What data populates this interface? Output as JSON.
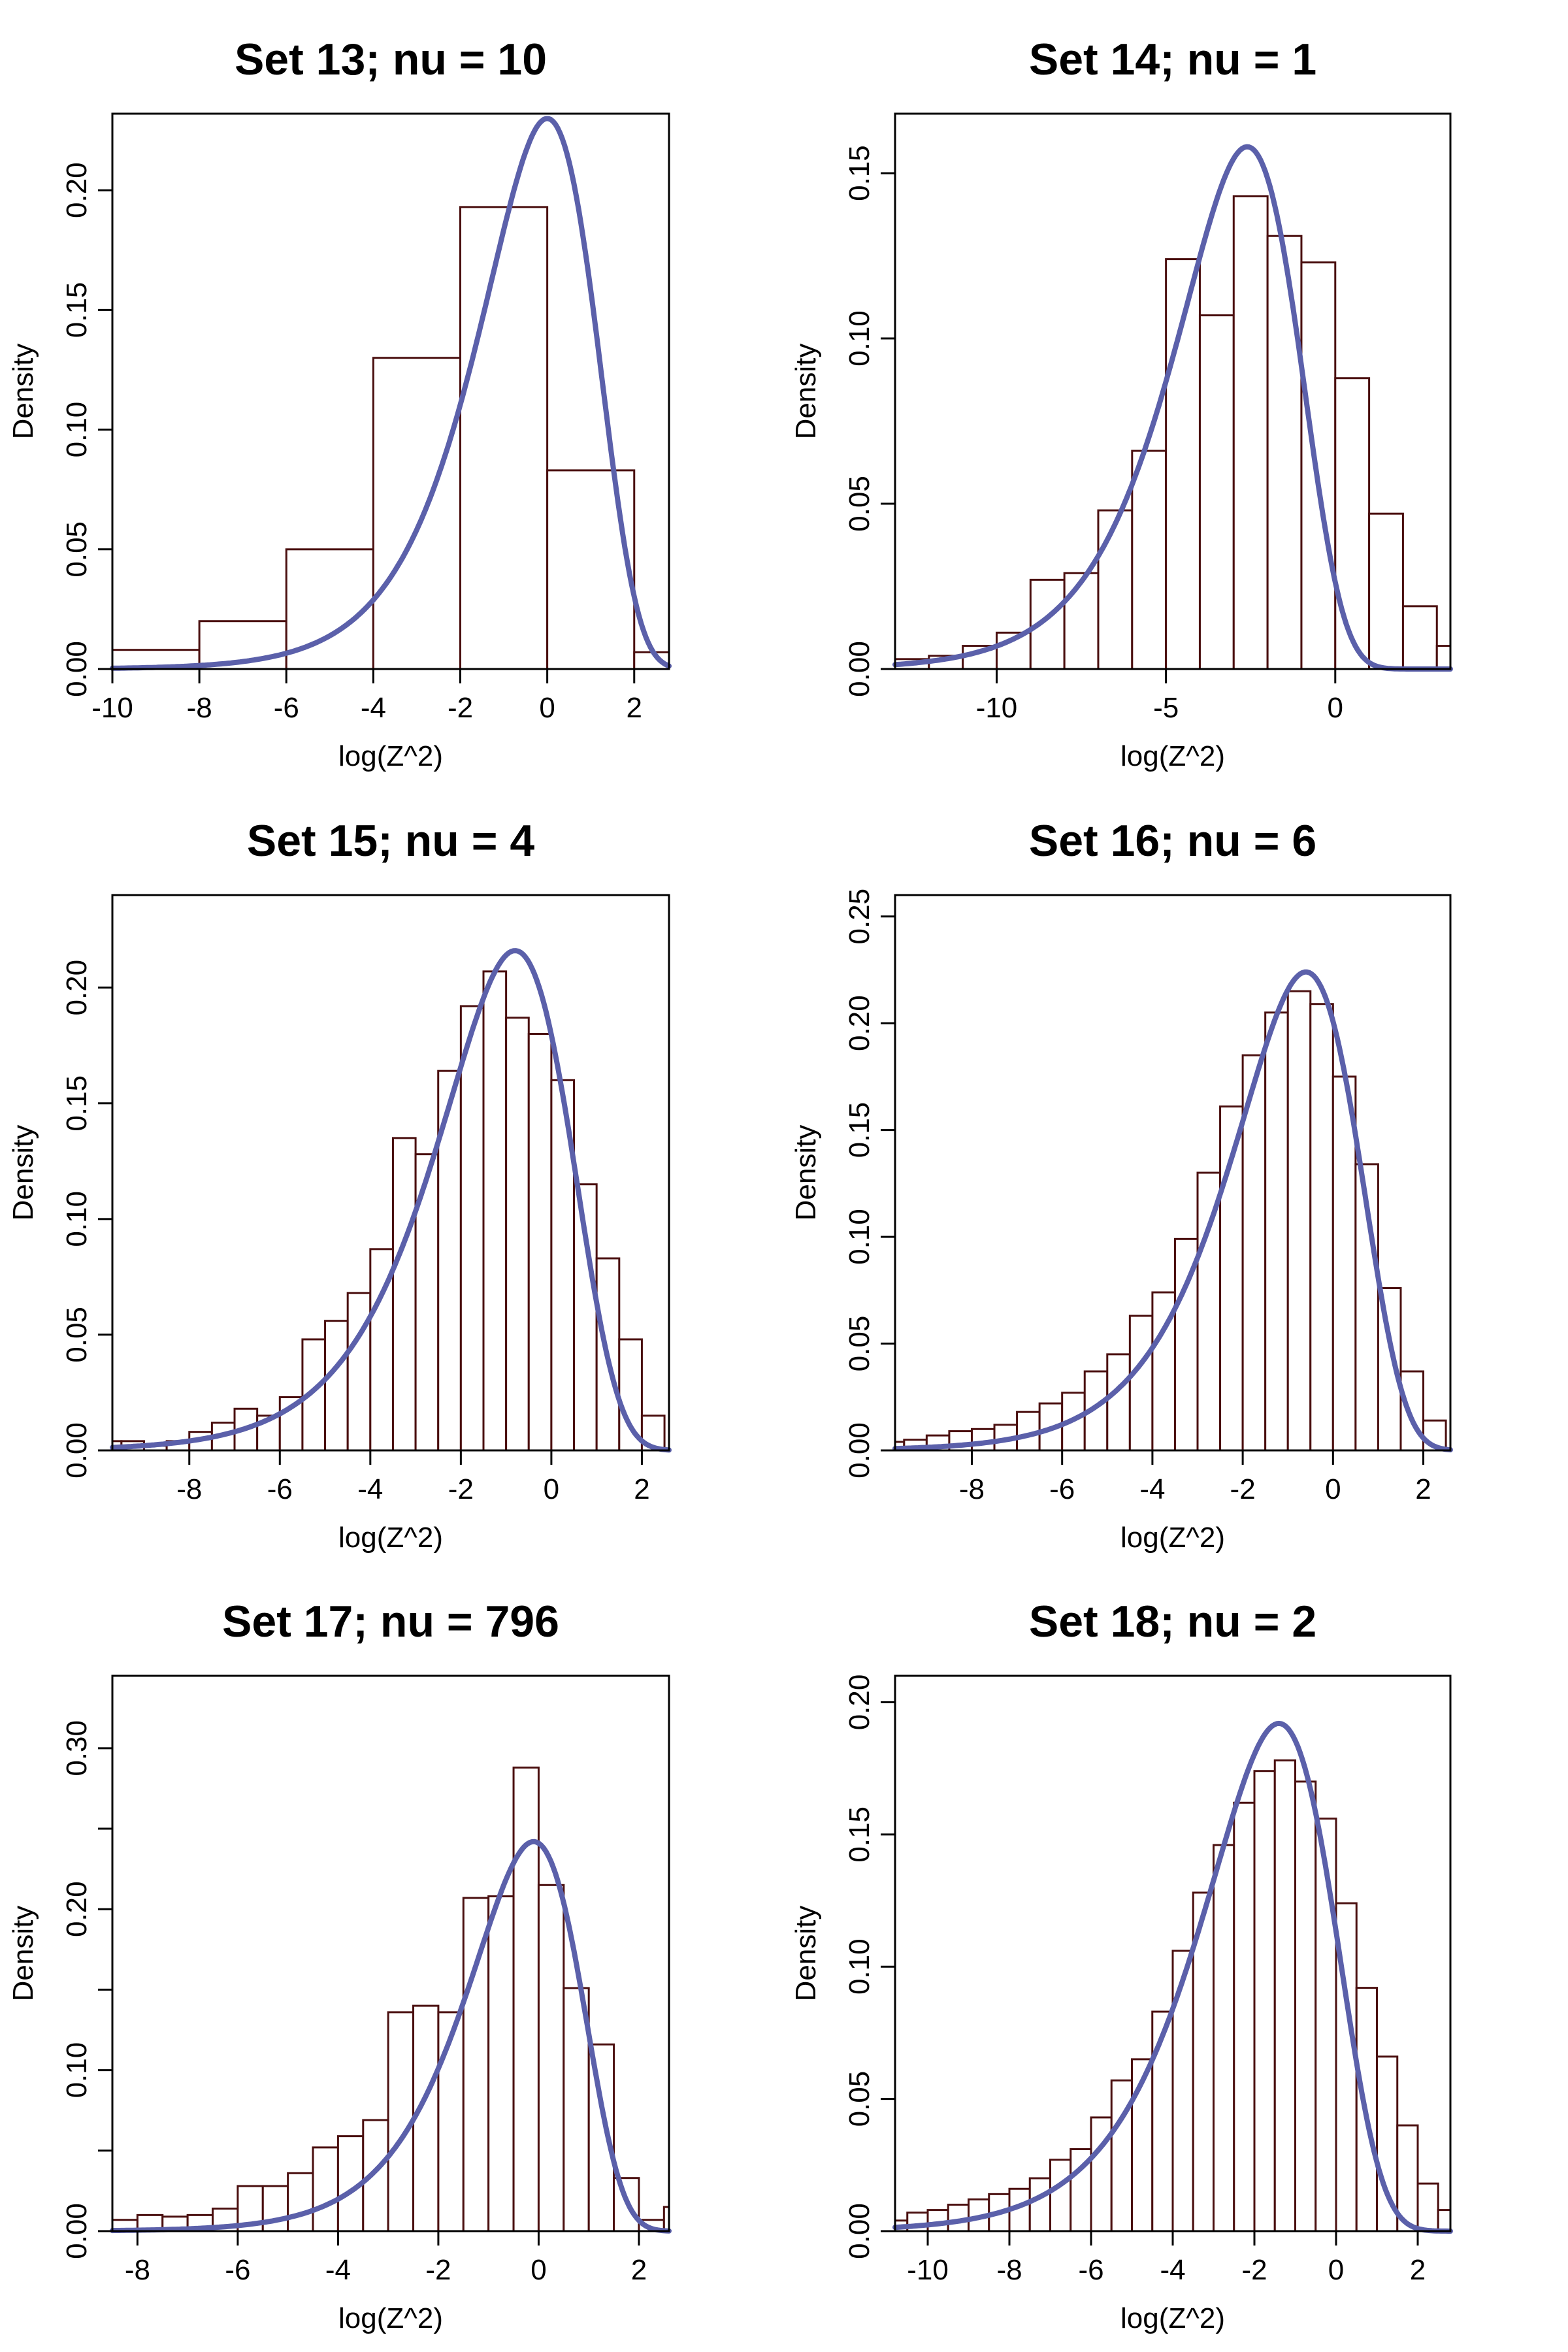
{
  "chart_data": [
    {
      "type": "histogram",
      "title": "Set 13; nu = 10",
      "xlabel": "log(Z^2)",
      "ylabel": "Density",
      "xlim": [
        -10,
        2.8
      ],
      "ylim": [
        0,
        0.232
      ],
      "xticks": [
        -10,
        -8,
        -6,
        -4,
        -2,
        0,
        2
      ],
      "xtick_labels": [
        "-10",
        "-8",
        "-6",
        "-4",
        "-2",
        "0",
        "2"
      ],
      "yticks": [
        0.0,
        0.05,
        0.1,
        0.15,
        0.2
      ],
      "ytick_labels": [
        "0.00",
        "0.05",
        "0.10",
        "0.15",
        "0.20"
      ],
      "bins": [
        {
          "x0": -10,
          "x1": -8,
          "density": 0.008
        },
        {
          "x0": -8,
          "x1": -6,
          "density": 0.02
        },
        {
          "x0": -6,
          "x1": -4,
          "density": 0.05
        },
        {
          "x0": -4,
          "x1": -2,
          "density": 0.13
        },
        {
          "x0": -2,
          "x1": 0,
          "density": 0.193
        },
        {
          "x0": 0,
          "x1": 2,
          "density": 0.083
        },
        {
          "x0": 2,
          "x1": 2.8,
          "density": 0.007
        }
      ],
      "curve": {
        "nu": 10,
        "peak_x": 0.0,
        "peak_y": 0.23
      }
    },
    {
      "type": "histogram",
      "title": "Set 14; nu = 1",
      "xlabel": "log(Z^2)",
      "ylabel": "Density",
      "xlim": [
        -13,
        3.4
      ],
      "ylim": [
        0,
        0.168
      ],
      "xticks": [
        -10,
        -5,
        0
      ],
      "xtick_labels": [
        "-10",
        "-5",
        "0"
      ],
      "yticks": [
        0.0,
        0.05,
        0.1,
        0.15
      ],
      "ytick_labels": [
        "0.00",
        "0.05",
        "0.10",
        "0.15"
      ],
      "bins": [
        {
          "x0": -13,
          "x1": -12,
          "density": 0.003
        },
        {
          "x0": -12,
          "x1": -11,
          "density": 0.004
        },
        {
          "x0": -11,
          "x1": -10,
          "density": 0.007
        },
        {
          "x0": -10,
          "x1": -9,
          "density": 0.011
        },
        {
          "x0": -9,
          "x1": -8,
          "density": 0.027
        },
        {
          "x0": -8,
          "x1": -7,
          "density": 0.029
        },
        {
          "x0": -7,
          "x1": -6,
          "density": 0.048
        },
        {
          "x0": -6,
          "x1": -5,
          "density": 0.066
        },
        {
          "x0": -5,
          "x1": -4,
          "density": 0.124
        },
        {
          "x0": -4,
          "x1": -3,
          "density": 0.107
        },
        {
          "x0": -3,
          "x1": -2,
          "density": 0.143
        },
        {
          "x0": -2,
          "x1": -1,
          "density": 0.131
        },
        {
          "x0": -1,
          "x1": 0,
          "density": 0.123
        },
        {
          "x0": 0,
          "x1": 1,
          "density": 0.088
        },
        {
          "x0": 1,
          "x1": 2,
          "density": 0.047
        },
        {
          "x0": 2,
          "x1": 3,
          "density": 0.019
        },
        {
          "x0": 3,
          "x1": 3.4,
          "density": 0.007
        }
      ],
      "curve": {
        "nu": 1,
        "peak_x": -2.6,
        "peak_y": 0.158
      }
    },
    {
      "type": "histogram",
      "title": "Set 15; nu = 4",
      "xlabel": "log(Z^2)",
      "ylabel": "Density",
      "xlim": [
        -9.7,
        2.6
      ],
      "ylim": [
        0,
        0.24
      ],
      "xticks": [
        -8,
        -6,
        -4,
        -2,
        0,
        2
      ],
      "xtick_labels": [
        "-8",
        "-6",
        "-4",
        "-2",
        "0",
        "2"
      ],
      "yticks": [
        0.0,
        0.05,
        0.1,
        0.15,
        0.2
      ],
      "ytick_labels": [
        "0.00",
        "0.05",
        "0.10",
        "0.15",
        "0.20"
      ],
      "bins": [
        {
          "x0": -9.7,
          "x1": -9.5,
          "density": 0.004
        },
        {
          "x0": -9.5,
          "x1": -9.0,
          "density": 0.004
        },
        {
          "x0": -9.0,
          "x1": -8.5,
          "density": 0.002
        },
        {
          "x0": -8.5,
          "x1": -8.0,
          "density": 0.004
        },
        {
          "x0": -8.0,
          "x1": -7.5,
          "density": 0.008
        },
        {
          "x0": -7.5,
          "x1": -7.0,
          "density": 0.012
        },
        {
          "x0": -7.0,
          "x1": -6.5,
          "density": 0.018
        },
        {
          "x0": -6.5,
          "x1": -6.0,
          "density": 0.015
        },
        {
          "x0": -6.0,
          "x1": -5.5,
          "density": 0.023
        },
        {
          "x0": -5.5,
          "x1": -5.0,
          "density": 0.048
        },
        {
          "x0": -5.0,
          "x1": -4.5,
          "density": 0.056
        },
        {
          "x0": -4.5,
          "x1": -4.0,
          "density": 0.068
        },
        {
          "x0": -4.0,
          "x1": -3.5,
          "density": 0.087
        },
        {
          "x0": -3.5,
          "x1": -3.0,
          "density": 0.135
        },
        {
          "x0": -3.0,
          "x1": -2.5,
          "density": 0.128
        },
        {
          "x0": -2.5,
          "x1": -2.0,
          "density": 0.164
        },
        {
          "x0": -2.0,
          "x1": -1.5,
          "density": 0.192
        },
        {
          "x0": -1.5,
          "x1": -1.0,
          "density": 0.207
        },
        {
          "x0": -1.0,
          "x1": -0.5,
          "density": 0.187
        },
        {
          "x0": -0.5,
          "x1": 0.0,
          "density": 0.18
        },
        {
          "x0": 0.0,
          "x1": 0.5,
          "density": 0.16
        },
        {
          "x0": 0.5,
          "x1": 1.0,
          "density": 0.115
        },
        {
          "x0": 1.0,
          "x1": 1.5,
          "density": 0.083
        },
        {
          "x0": 1.5,
          "x1": 2.0,
          "density": 0.048
        },
        {
          "x0": 2.0,
          "x1": 2.5,
          "density": 0.015
        }
      ],
      "curve": {
        "nu": 4,
        "peak_x": -0.8,
        "peak_y": 0.216
      }
    },
    {
      "type": "histogram",
      "title": "Set 16; nu = 6",
      "xlabel": "log(Z^2)",
      "ylabel": "Density",
      "xlim": [
        -9.7,
        2.6
      ],
      "ylim": [
        0,
        0.26
      ],
      "xticks": [
        -8,
        -6,
        -4,
        -2,
        0,
        2
      ],
      "xtick_labels": [
        "-8",
        "-6",
        "-4",
        "-2",
        "0",
        "2"
      ],
      "yticks": [
        0.0,
        0.05,
        0.1,
        0.15,
        0.2,
        0.25
      ],
      "ytick_labels": [
        "0.00",
        "0.05",
        "0.10",
        "0.15",
        "0.20",
        "0.25"
      ],
      "bins": [
        {
          "x0": -9.7,
          "x1": -9.5,
          "density": 0.004
        },
        {
          "x0": -9.5,
          "x1": -9.0,
          "density": 0.005
        },
        {
          "x0": -9.0,
          "x1": -8.5,
          "density": 0.007
        },
        {
          "x0": -8.5,
          "x1": -8.0,
          "density": 0.009
        },
        {
          "x0": -8.0,
          "x1": -7.5,
          "density": 0.01
        },
        {
          "x0": -7.5,
          "x1": -7.0,
          "density": 0.012
        },
        {
          "x0": -7.0,
          "x1": -6.5,
          "density": 0.018
        },
        {
          "x0": -6.5,
          "x1": -6.0,
          "density": 0.022
        },
        {
          "x0": -6.0,
          "x1": -5.5,
          "density": 0.027
        },
        {
          "x0": -5.5,
          "x1": -5.0,
          "density": 0.037
        },
        {
          "x0": -5.0,
          "x1": -4.5,
          "density": 0.045
        },
        {
          "x0": -4.5,
          "x1": -4.0,
          "density": 0.063
        },
        {
          "x0": -4.0,
          "x1": -3.5,
          "density": 0.074
        },
        {
          "x0": -3.5,
          "x1": -3.0,
          "density": 0.099
        },
        {
          "x0": -3.0,
          "x1": -2.5,
          "density": 0.13
        },
        {
          "x0": -2.5,
          "x1": -2.0,
          "density": 0.161
        },
        {
          "x0": -2.0,
          "x1": -1.5,
          "density": 0.185
        },
        {
          "x0": -1.5,
          "x1": -1.0,
          "density": 0.205
        },
        {
          "x0": -1.0,
          "x1": -0.5,
          "density": 0.215
        },
        {
          "x0": -0.5,
          "x1": 0.0,
          "density": 0.209
        },
        {
          "x0": 0.0,
          "x1": 0.5,
          "density": 0.175
        },
        {
          "x0": 0.5,
          "x1": 1.0,
          "density": 0.134
        },
        {
          "x0": 1.0,
          "x1": 1.5,
          "density": 0.076
        },
        {
          "x0": 1.5,
          "x1": 2.0,
          "density": 0.037
        },
        {
          "x0": 2.0,
          "x1": 2.5,
          "density": 0.014
        }
      ],
      "curve": {
        "nu": 6,
        "peak_x": -0.6,
        "peak_y": 0.224
      }
    },
    {
      "type": "histogram",
      "title": "Set 17; nu = 796",
      "xlabel": "log(Z^2)",
      "ylabel": "Density",
      "xlim": [
        -8.5,
        2.6
      ],
      "ylim": [
        0,
        0.345
      ],
      "xticks": [
        -8,
        -6,
        -4,
        -2,
        0,
        2
      ],
      "xtick_labels": [
        "-8",
        "-6",
        "-4",
        "-2",
        "0",
        "2"
      ],
      "yticks": [
        0.0,
        0.05,
        0.1,
        0.15,
        0.2,
        0.25,
        0.3
      ],
      "ytick_labels": [
        "0.00",
        "",
        "0.10",
        "",
        "0.20",
        "",
        "0.30"
      ],
      "bins": [
        {
          "x0": -8.5,
          "x1": -8.0,
          "density": 0.007
        },
        {
          "x0": -8.0,
          "x1": -7.5,
          "density": 0.01
        },
        {
          "x0": -7.5,
          "x1": -7.0,
          "density": 0.009
        },
        {
          "x0": -7.0,
          "x1": -6.5,
          "density": 0.01
        },
        {
          "x0": -6.5,
          "x1": -6.0,
          "density": 0.014
        },
        {
          "x0": -6.0,
          "x1": -5.5,
          "density": 0.028
        },
        {
          "x0": -5.5,
          "x1": -5.0,
          "density": 0.028
        },
        {
          "x0": -5.0,
          "x1": -4.5,
          "density": 0.036
        },
        {
          "x0": -4.5,
          "x1": -4.0,
          "density": 0.052
        },
        {
          "x0": -4.0,
          "x1": -3.5,
          "density": 0.059
        },
        {
          "x0": -3.5,
          "x1": -3.0,
          "density": 0.069
        },
        {
          "x0": -3.0,
          "x1": -2.5,
          "density": 0.136
        },
        {
          "x0": -2.5,
          "x1": -2.0,
          "density": 0.14
        },
        {
          "x0": -2.0,
          "x1": -1.5,
          "density": 0.136
        },
        {
          "x0": -1.5,
          "x1": -1.0,
          "density": 0.207
        },
        {
          "x0": -1.0,
          "x1": -0.5,
          "density": 0.208
        },
        {
          "x0": -0.5,
          "x1": 0.0,
          "density": 0.288
        },
        {
          "x0": 0.0,
          "x1": 0.5,
          "density": 0.215
        },
        {
          "x0": 0.5,
          "x1": 1.0,
          "density": 0.151
        },
        {
          "x0": 1.0,
          "x1": 1.5,
          "density": 0.116
        },
        {
          "x0": 1.5,
          "x1": 2.0,
          "density": 0.033
        },
        {
          "x0": 2.0,
          "x1": 2.5,
          "density": 0.007
        },
        {
          "x0": 2.5,
          "x1": 2.6,
          "density": 0.015
        }
      ],
      "curve": {
        "nu": 796,
        "peak_x": -0.1,
        "peak_y": 0.242
      }
    },
    {
      "type": "histogram",
      "title": "Set 18; nu = 2",
      "xlabel": "log(Z^2)",
      "ylabel": "Density",
      "xlim": [
        -10.8,
        2.8
      ],
      "ylim": [
        0,
        0.21
      ],
      "xticks": [
        -10,
        -8,
        -6,
        -4,
        -2,
        0,
        2
      ],
      "xtick_labels": [
        "-10",
        "-8",
        "-6",
        "-4",
        "-2",
        "0",
        "2"
      ],
      "yticks": [
        0.0,
        0.05,
        0.1,
        0.15,
        0.2
      ],
      "ytick_labels": [
        "0.00",
        "0.05",
        "0.10",
        "0.15",
        "0.20"
      ],
      "bins": [
        {
          "x0": -10.8,
          "x1": -10.5,
          "density": 0.004
        },
        {
          "x0": -10.5,
          "x1": -10.0,
          "density": 0.007
        },
        {
          "x0": -10.0,
          "x1": -9.5,
          "density": 0.008
        },
        {
          "x0": -9.5,
          "x1": -9.0,
          "density": 0.01
        },
        {
          "x0": -9.0,
          "x1": -8.5,
          "density": 0.012
        },
        {
          "x0": -8.5,
          "x1": -8.0,
          "density": 0.014
        },
        {
          "x0": -8.0,
          "x1": -7.5,
          "density": 0.016
        },
        {
          "x0": -7.5,
          "x1": -7.0,
          "density": 0.02
        },
        {
          "x0": -7.0,
          "x1": -6.5,
          "density": 0.027
        },
        {
          "x0": -6.5,
          "x1": -6.0,
          "density": 0.031
        },
        {
          "x0": -6.0,
          "x1": -5.5,
          "density": 0.043
        },
        {
          "x0": -5.5,
          "x1": -5.0,
          "density": 0.057
        },
        {
          "x0": -5.0,
          "x1": -4.5,
          "density": 0.065
        },
        {
          "x0": -4.5,
          "x1": -4.0,
          "density": 0.083
        },
        {
          "x0": -4.0,
          "x1": -3.5,
          "density": 0.106
        },
        {
          "x0": -3.5,
          "x1": -3.0,
          "density": 0.128
        },
        {
          "x0": -3.0,
          "x1": -2.5,
          "density": 0.146
        },
        {
          "x0": -2.5,
          "x1": -2.0,
          "density": 0.162
        },
        {
          "x0": -2.0,
          "x1": -1.5,
          "density": 0.174
        },
        {
          "x0": -1.5,
          "x1": -1.0,
          "density": 0.178
        },
        {
          "x0": -1.0,
          "x1": -0.5,
          "density": 0.17
        },
        {
          "x0": -0.5,
          "x1": 0.0,
          "density": 0.156
        },
        {
          "x0": 0.0,
          "x1": 0.5,
          "density": 0.124
        },
        {
          "x0": 0.5,
          "x1": 1.0,
          "density": 0.092
        },
        {
          "x0": 1.0,
          "x1": 1.5,
          "density": 0.066
        },
        {
          "x0": 1.5,
          "x1": 2.0,
          "density": 0.04
        },
        {
          "x0": 2.0,
          "x1": 2.5,
          "density": 0.018
        },
        {
          "x0": 2.5,
          "x1": 2.8,
          "density": 0.008
        }
      ],
      "curve": {
        "nu": 2,
        "peak_x": -1.4,
        "peak_y": 0.192
      }
    }
  ]
}
